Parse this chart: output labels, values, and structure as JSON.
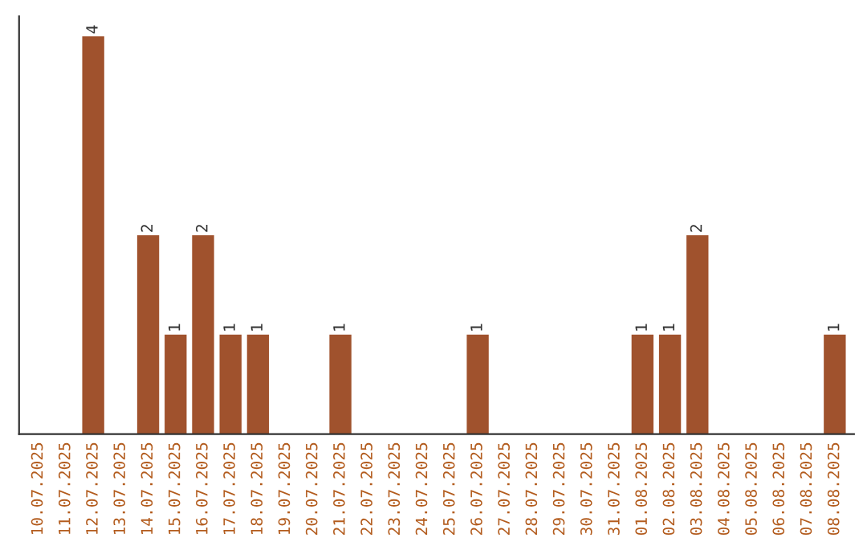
{
  "chart_data": {
    "type": "bar",
    "categories": [
      "10.07.2025",
      "11.07.2025",
      "12.07.2025",
      "13.07.2025",
      "14.07.2025",
      "15.07.2025",
      "16.07.2025",
      "17.07.2025",
      "18.07.2025",
      "19.07.2025",
      "20.07.2025",
      "21.07.2025",
      "22.07.2025",
      "23.07.2025",
      "24.07.2025",
      "25.07.2025",
      "26.07.2025",
      "27.07.2025",
      "28.07.2025",
      "29.07.2025",
      "30.07.2025",
      "31.07.2025",
      "01.08.2025",
      "02.08.2025",
      "03.08.2025",
      "04.08.2025",
      "05.08.2025",
      "06.08.2025",
      "07.08.2025",
      "08.08.2025"
    ],
    "values": [
      0,
      0,
      4,
      0,
      2,
      1,
      2,
      1,
      1,
      0,
      0,
      1,
      0,
      0,
      0,
      0,
      1,
      0,
      0,
      0,
      0,
      0,
      1,
      1,
      2,
      0,
      0,
      0,
      0,
      1
    ],
    "value_labels": [
      null,
      null,
      "4",
      null,
      "2",
      "1",
      "2",
      "1",
      "1",
      null,
      null,
      "1",
      null,
      null,
      null,
      null,
      "1",
      null,
      null,
      null,
      null,
      null,
      "1",
      "1",
      "2",
      null,
      null,
      null,
      null,
      "1"
    ],
    "color": "#a0522d",
    "tick_labels": "x",
    "grid": false,
    "legend": false
  }
}
